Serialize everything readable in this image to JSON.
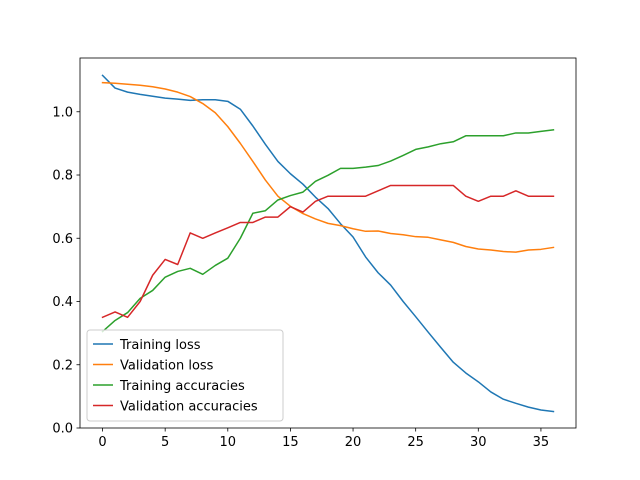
{
  "chart_data": {
    "type": "line",
    "title": "",
    "xlabel": "",
    "ylabel": "",
    "xlim": [
      -1.8,
      37.8
    ],
    "ylim": [
      0.0,
      1.17
    ],
    "x_ticks": [
      0,
      5,
      10,
      15,
      20,
      25,
      30,
      35
    ],
    "y_ticks": [
      0.0,
      0.2,
      0.4,
      0.6,
      0.8,
      1.0
    ],
    "grid": false,
    "legend_position": "lower-left",
    "x": [
      0,
      1,
      2,
      3,
      4,
      5,
      6,
      7,
      8,
      9,
      10,
      11,
      12,
      13,
      14,
      15,
      16,
      17,
      18,
      19,
      20,
      21,
      22,
      23,
      24,
      25,
      26,
      27,
      28,
      29,
      30,
      31,
      32,
      33,
      34,
      35,
      36
    ],
    "series": [
      {
        "name": "Training loss",
        "color": "#1f77b4",
        "values": [
          1.115,
          1.075,
          1.062,
          1.055,
          1.049,
          1.043,
          1.04,
          1.036,
          1.038,
          1.038,
          1.033,
          1.008,
          0.955,
          0.897,
          0.843,
          0.804,
          0.771,
          0.73,
          0.694,
          0.646,
          0.604,
          0.541,
          0.491,
          0.452,
          0.4,
          0.352,
          0.303,
          0.255,
          0.208,
          0.174,
          0.146,
          0.114,
          0.091,
          0.078,
          0.066,
          0.057,
          0.052
        ]
      },
      {
        "name": "Validation loss",
        "color": "#ff7f0e",
        "values": [
          1.092,
          1.09,
          1.087,
          1.084,
          1.079,
          1.072,
          1.062,
          1.048,
          1.026,
          0.997,
          0.953,
          0.9,
          0.843,
          0.784,
          0.733,
          0.701,
          0.678,
          0.661,
          0.647,
          0.64,
          0.63,
          0.622,
          0.623,
          0.615,
          0.611,
          0.605,
          0.603,
          0.595,
          0.587,
          0.574,
          0.566,
          0.563,
          0.558,
          0.556,
          0.563,
          0.565,
          0.571
        ]
      },
      {
        "name": "Training accuracies",
        "color": "#2ca02c",
        "values": [
          0.305,
          0.34,
          0.365,
          0.41,
          0.435,
          0.477,
          0.495,
          0.505,
          0.486,
          0.514,
          0.537,
          0.6,
          0.679,
          0.687,
          0.721,
          0.735,
          0.746,
          0.78,
          0.799,
          0.821,
          0.821,
          0.825,
          0.83,
          0.844,
          0.862,
          0.881,
          0.889,
          0.899,
          0.905,
          0.924,
          0.924,
          0.924,
          0.924,
          0.933,
          0.933,
          0.938,
          0.943
        ]
      },
      {
        "name": "Validation accuracies",
        "color": "#d62728",
        "values": [
          0.35,
          0.367,
          0.35,
          0.4,
          0.483,
          0.533,
          0.517,
          0.617,
          0.6,
          0.617,
          0.633,
          0.65,
          0.65,
          0.667,
          0.667,
          0.7,
          0.683,
          0.717,
          0.733,
          0.733,
          0.733,
          0.733,
          0.75,
          0.767,
          0.767,
          0.767,
          0.767,
          0.767,
          0.767,
          0.733,
          0.717,
          0.733,
          0.733,
          0.75,
          0.733,
          0.733,
          0.733
        ]
      }
    ]
  }
}
